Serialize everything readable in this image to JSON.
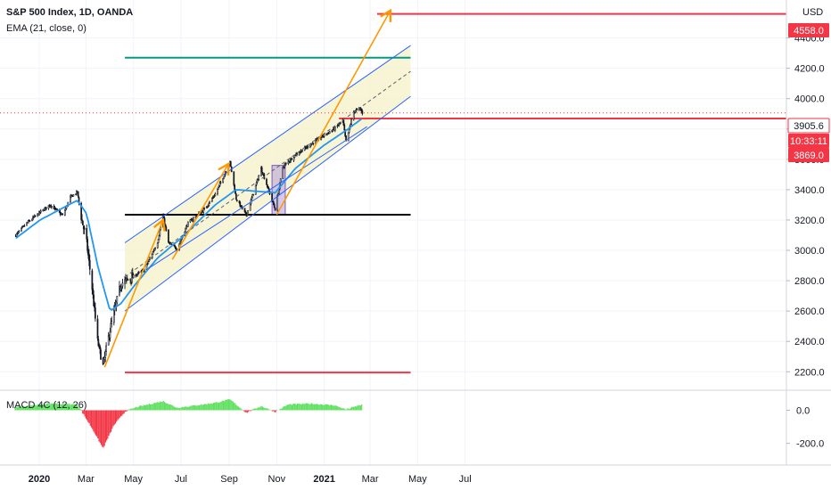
{
  "header": {
    "symbol_line": "S&P 500 Index, 1D, OANDA",
    "indicator_line": "EMA (21, close, 0)",
    "currency": "USD",
    "macd_label": "MACD 4C (12, 26)"
  },
  "price_tags": {
    "target": "4558.0",
    "last": "3905.6",
    "countdown": "10:33:11",
    "level": "3869.0"
  },
  "chart_data": {
    "type": "candlestick",
    "title": "S&P 500 Index, 1D, OANDA",
    "y_axis": {
      "unit": "USD",
      "ticks": [
        2200,
        2400,
        2600,
        2800,
        3000,
        3200,
        3400,
        3600,
        3800,
        4000,
        4200,
        4400
      ],
      "range": [
        2090,
        4650
      ]
    },
    "x_axis": {
      "ticks": [
        "2020",
        "Mar",
        "May",
        "Jul",
        "Sep",
        "Nov",
        "2021",
        "Mar",
        "May",
        "Jul"
      ]
    },
    "price_series": [
      [
        "2019-12-02",
        3100
      ],
      [
        "2019-12-16",
        3180
      ],
      [
        "2020-01-02",
        3250
      ],
      [
        "2020-01-15",
        3300
      ],
      [
        "2020-01-31",
        3230
      ],
      [
        "2020-02-10",
        3350
      ],
      [
        "2020-02-19",
        3385
      ],
      [
        "2020-02-24",
        3220
      ],
      [
        "2020-03-02",
        3050
      ],
      [
        "2020-03-09",
        2750
      ],
      [
        "2020-03-16",
        2400
      ],
      [
        "2020-03-23",
        2240
      ],
      [
        "2020-04-01",
        2480
      ],
      [
        "2020-04-15",
        2780
      ],
      [
        "2020-05-01",
        2830
      ],
      [
        "2020-05-15",
        2870
      ],
      [
        "2020-06-01",
        3055
      ],
      [
        "2020-06-08",
        3230
      ],
      [
        "2020-06-15",
        3050
      ],
      [
        "2020-06-26",
        3010
      ],
      [
        "2020-07-10",
        3180
      ],
      [
        "2020-07-31",
        3270
      ],
      [
        "2020-08-14",
        3370
      ],
      [
        "2020-09-02",
        3580
      ],
      [
        "2020-09-10",
        3340
      ],
      [
        "2020-09-23",
        3230
      ],
      [
        "2020-10-12",
        3540
      ],
      [
        "2020-10-30",
        3270
      ],
      [
        "2020-11-09",
        3550
      ],
      [
        "2020-11-25",
        3630
      ],
      [
        "2020-12-15",
        3700
      ],
      [
        "2020-12-31",
        3756
      ],
      [
        "2021-01-14",
        3800
      ],
      [
        "2021-01-25",
        3855
      ],
      [
        "2021-01-29",
        3715
      ],
      [
        "2021-02-08",
        3915
      ],
      [
        "2021-02-16",
        3935
      ],
      [
        "2021-02-19",
        3905.6
      ]
    ],
    "ema_series": [
      [
        "2019-12-02",
        3080
      ],
      [
        "2020-01-02",
        3200
      ],
      [
        "2020-02-19",
        3330
      ],
      [
        "2020-03-02",
        3240
      ],
      [
        "2020-03-16",
        2900
      ],
      [
        "2020-04-01",
        2600
      ],
      [
        "2020-04-15",
        2650
      ],
      [
        "2020-05-01",
        2760
      ],
      [
        "2020-06-01",
        2950
      ],
      [
        "2020-07-01",
        3080
      ],
      [
        "2020-08-14",
        3300
      ],
      [
        "2020-09-10",
        3400
      ],
      [
        "2020-10-30",
        3380
      ],
      [
        "2020-11-25",
        3540
      ],
      [
        "2020-12-31",
        3690
      ],
      [
        "2021-01-29",
        3790
      ],
      [
        "2021-02-19",
        3870
      ]
    ],
    "horizontal_levels": [
      {
        "value": 4558,
        "color": "#f23645"
      },
      {
        "value": 4270,
        "color": "#089981"
      },
      {
        "value": 3869,
        "color": "#f23645"
      },
      {
        "value": 3235,
        "color": "#000000"
      },
      {
        "value": 2195,
        "color": "#f23645"
      }
    ],
    "macd": {
      "ticks": [
        0.0,
        -200.0
      ],
      "range": [
        -320,
        110
      ],
      "values": [
        [
          "2019-12-01",
          20
        ],
        [
          "2020-01-15",
          40
        ],
        [
          "2020-02-19",
          35
        ],
        [
          "2020-02-25",
          -10
        ],
        [
          "2020-03-09",
          -110
        ],
        [
          "2020-03-23",
          -230
        ],
        [
          "2020-04-06",
          -90
        ],
        [
          "2020-04-21",
          -5
        ],
        [
          "2020-05-06",
          20
        ],
        [
          "2020-06-08",
          55
        ],
        [
          "2020-06-26",
          15
        ],
        [
          "2020-07-21",
          30
        ],
        [
          "2020-08-14",
          45
        ],
        [
          "2020-09-02",
          65
        ],
        [
          "2020-09-23",
          -15
        ],
        [
          "2020-10-12",
          25
        ],
        [
          "2020-10-30",
          -10
        ],
        [
          "2020-11-16",
          35
        ],
        [
          "2020-12-15",
          40
        ],
        [
          "2021-01-14",
          30
        ],
        [
          "2021-01-29",
          5
        ],
        [
          "2021-02-19",
          35
        ]
      ]
    },
    "colors": {
      "up": "#22ab94",
      "down": "#f23645",
      "ema": "#2196f3",
      "channel": "#2962ff",
      "arrow": "#ff9800",
      "macd_up": "#5fe05f",
      "macd_down": "#f23645"
    }
  }
}
